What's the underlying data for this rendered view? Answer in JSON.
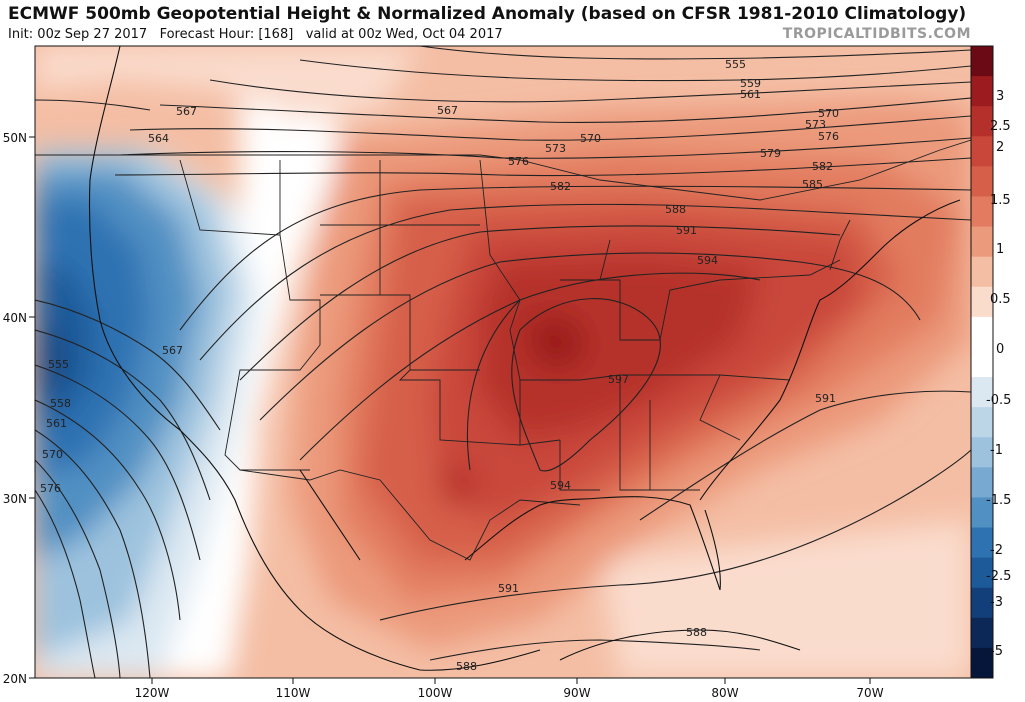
{
  "header": {
    "title": "ECMWF 500mb Geopotential Height & Normalized Anomaly (based on CFSR 1981-2010 Climatology)",
    "init": "Init: 00z Sep 27 2017",
    "forecast": "Forecast Hour: [168]",
    "valid": "valid at 00z Wed, Oct 04 2017",
    "brand": "TROPICALTIDBITS.COM"
  },
  "axes": {
    "lat_labels": [
      "50N",
      "40N",
      "30N",
      "20N"
    ],
    "lon_labels": [
      "120W",
      "110W",
      "100W",
      "90W",
      "80W",
      "70W"
    ]
  },
  "colorbar": {
    "labels": [
      "3",
      "2.5",
      "2",
      "1.5",
      "1",
      "0.5",
      "0",
      "-0.5",
      "-1",
      "-1.5",
      "-2",
      "-2.5",
      "-3",
      "-5"
    ],
    "colors": [
      "#6b0a14",
      "#9b1b1e",
      "#b5302b",
      "#c9463a",
      "#d65f4a",
      "#e27b5f",
      "#ec9a7c",
      "#f4bea4",
      "#fadccd",
      "#ffffff",
      "#ffffff",
      "#dbe8f2",
      "#bcd6e8",
      "#9cc2de",
      "#77a9d1",
      "#5190c3",
      "#2f72b2",
      "#1d5a9a",
      "#123f7a",
      "#0b2857",
      "#06153a"
    ]
  },
  "contours": {
    "labels": [
      "555",
      "559",
      "561",
      "567",
      "564",
      "570",
      "573",
      "576",
      "579",
      "582",
      "585",
      "588",
      "591",
      "594",
      "597",
      "555",
      "558",
      "561",
      "570",
      "576",
      "567",
      "594",
      "591",
      "588",
      "588",
      "591",
      "570",
      "573",
      "576",
      "582"
    ]
  }
}
